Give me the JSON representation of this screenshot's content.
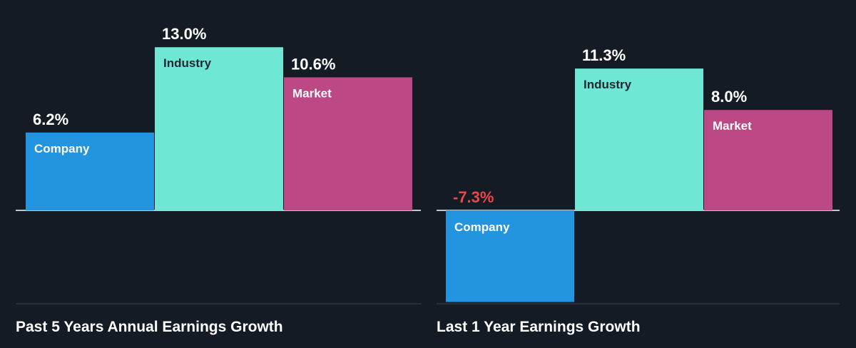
{
  "colors": {
    "background": "#151b24",
    "company": "#2394e0",
    "industry": "#6ee7d4",
    "market": "#bc4886",
    "positive_value_text": "#ffffff",
    "negative_value_text": "#e8474b",
    "bar_label_on_light": "#1f2733",
    "bar_label_on_dark": "#ffffff",
    "baseline": "#ffffff",
    "bottom_rule": "#3a414c",
    "title_text": "#ffffff"
  },
  "chart_data": [
    {
      "type": "bar",
      "title": "Past 5 Years Annual Earnings Growth",
      "categories": [
        "Company",
        "Industry",
        "Market"
      ],
      "values": [
        6.2,
        13.0,
        10.6
      ],
      "value_labels": [
        "6.2%",
        "13.0%",
        "10.6%"
      ],
      "unit": "%",
      "grid": false,
      "legend": "none"
    },
    {
      "type": "bar",
      "title": "Last 1 Year Earnings Growth",
      "categories": [
        "Company",
        "Industry",
        "Market"
      ],
      "values": [
        -7.3,
        11.3,
        8.0
      ],
      "value_labels": [
        "-7.3%",
        "11.3%",
        "8.0%"
      ],
      "unit": "%",
      "grid": false,
      "legend": "none"
    }
  ]
}
